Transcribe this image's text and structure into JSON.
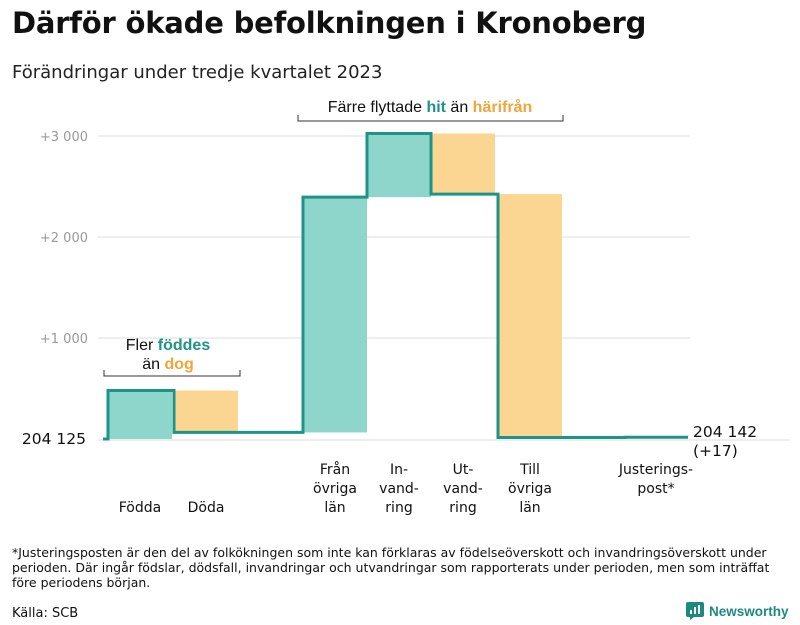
{
  "title": "Därför ökade befolkningen i Kronoberg",
  "subtitle": "Förändringar under tredje kvartalet 2023",
  "footnote": "*Justeringsposten är den del av folkökningen som inte kan förklaras av födelseöverskott och invandringsöverskott under perioden. Där ingår födslar, dödsfall, invandringar och utvandringar som rapporterats under perioden, men som inträffat före periodens början.",
  "source": "Källa: SCB",
  "brand": "Newsworthy",
  "colors": {
    "in": "#8ed5cc",
    "out": "#fbd692",
    "line": "#1e9387",
    "accent_in": "#1e9387",
    "accent_out": "#f1a53a"
  },
  "annotations": {
    "births": {
      "line1": "Fler ",
      "bold1": "föddes",
      "line2": "än ",
      "bold2": "dog"
    },
    "migration": {
      "text1": "Färre flyttade ",
      "bold1": "hit",
      "text2": " än ",
      "bold2": "härifrån"
    }
  },
  "chart_data": {
    "type": "waterfall",
    "baseline": 204125,
    "baseline_label": "204  125",
    "end_value": 204142,
    "end_label_line1": "204 142",
    "end_label_line2": "(+17)",
    "yticks": [
      {
        "value": 3000,
        "label": "+3  000"
      },
      {
        "value": 2000,
        "label": "+2  000"
      },
      {
        "value": 1000,
        "label": "+1  000"
      }
    ],
    "ylim": [
      0,
      3000
    ],
    "steps": [
      {
        "label": [
          "Födda"
        ],
        "delta": 480,
        "kind": "in"
      },
      {
        "label": [
          "Döda"
        ],
        "delta": -415,
        "kind": "out"
      },
      {
        "label": [
          "Från",
          "övriga",
          "län"
        ],
        "delta": 2330,
        "kind": "in"
      },
      {
        "label": [
          "In-",
          "vand-",
          "ring"
        ],
        "delta": 630,
        "kind": "in"
      },
      {
        "label": [
          "Ut-",
          "vand-",
          "ring"
        ],
        "delta": -600,
        "kind": "out"
      },
      {
        "label": [
          "Till",
          "övriga",
          "län"
        ],
        "delta": -2410,
        "kind": "out"
      },
      {
        "label": [
          "Justerings-",
          "post*"
        ],
        "delta": 2,
        "kind": "in"
      }
    ]
  }
}
